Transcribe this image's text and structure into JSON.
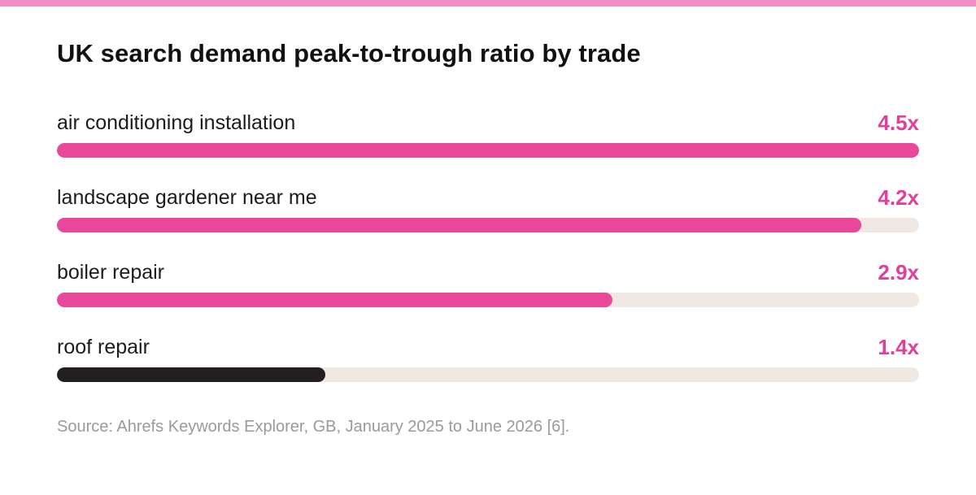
{
  "colors": {
    "accent_bar": "#f48cc8",
    "highlight": "#e8479a",
    "emphasis": "#231f20",
    "track": "#f0e8e3",
    "value_text": "#e0409a"
  },
  "chart_data": {
    "type": "bar",
    "orientation": "horizontal",
    "title": "UK search demand peak-to-trough ratio by trade",
    "categories": [
      "air conditioning installation",
      "landscape gardener near me",
      "boiler repair",
      "roof repair"
    ],
    "values": [
      4.5,
      4.2,
      2.9,
      1.4
    ],
    "value_labels": [
      "4.5x",
      "4.2x",
      "2.9x",
      "1.4x"
    ],
    "bar_colors": [
      "#e8479a",
      "#e8479a",
      "#e8479a",
      "#231f20"
    ],
    "xlim": [
      0,
      4.5
    ],
    "grid": false,
    "legend": "none",
    "source": "Source: Ahrefs Keywords Explorer, GB, January 2025 to June 2026 [6]."
  }
}
